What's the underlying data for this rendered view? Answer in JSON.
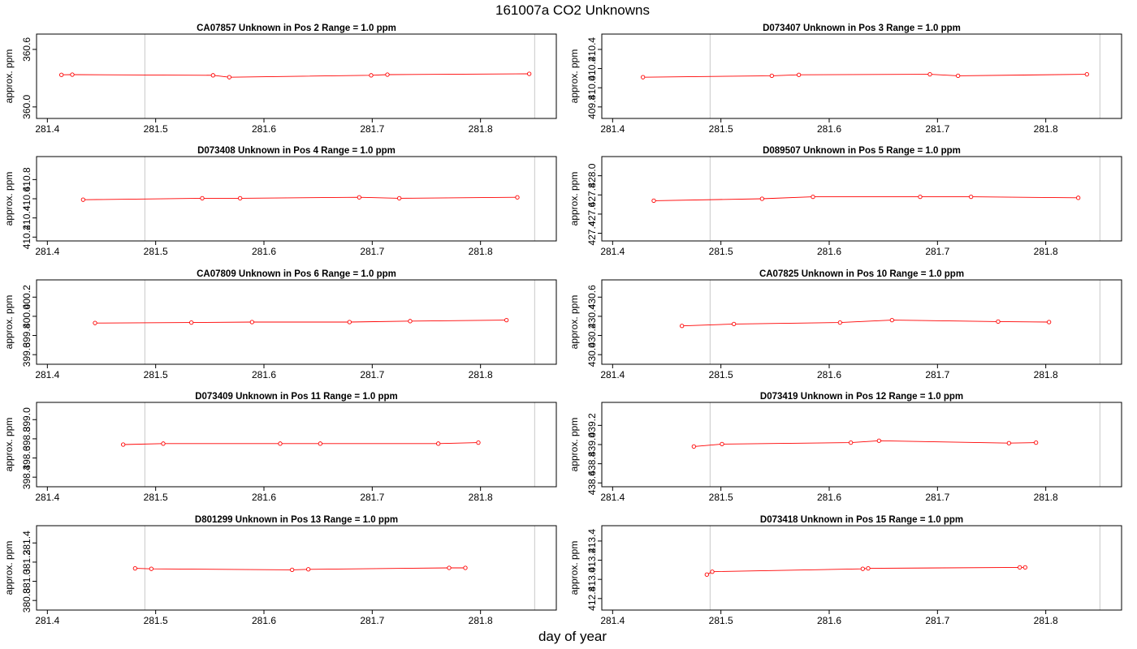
{
  "figure": {
    "title": "161007a  CO2 Unknowns",
    "xlabel": "day of year"
  },
  "colors": {
    "series": "#ff0000",
    "marker": "#ff0000",
    "vline": "#c8c8c8",
    "frame": "#000000"
  },
  "chart_data": [
    {
      "type": "line",
      "title": "CA07857    Unknown in Pos 2         Range = 1.0 ppm",
      "ylabel": "approx. ppm",
      "xlim": [
        281.39,
        281.87
      ],
      "ylim": [
        359.88,
        360.76
      ],
      "xticks": [
        "281.4",
        "281.5",
        "281.6",
        "281.7",
        "281.8"
      ],
      "yticks": [
        "360.0",
        "360.6"
      ],
      "vlines": [
        281.49,
        281.85
      ],
      "x": [
        281.413,
        281.423,
        281.553,
        281.568,
        281.699,
        281.714,
        281.845
      ],
      "y": [
        360.335,
        360.337,
        360.33,
        360.31,
        360.33,
        360.337,
        360.345
      ]
    },
    {
      "type": "line",
      "title": "D073407    Unknown in Pos 3         Range = 1.0 ppm",
      "ylabel": "approx. ppm",
      "xlim": [
        281.39,
        281.87
      ],
      "ylim": [
        409.68,
        410.56
      ],
      "xticks": [
        "281.4",
        "281.5",
        "281.6",
        "281.7",
        "281.8"
      ],
      "yticks": [
        "409.8",
        "410.0",
        "410.2",
        "410.4"
      ],
      "vlines": [
        281.49,
        281.85
      ],
      "x": [
        281.428,
        281.547,
        281.572,
        281.693,
        281.719,
        281.838
      ],
      "y": [
        410.11,
        410.125,
        410.135,
        410.14,
        410.125,
        410.14
      ]
    },
    {
      "type": "line",
      "title": "D073408    Unknown in Pos 4         Range = 1.0 ppm",
      "ylabel": "approx. ppm",
      "xlim": [
        281.39,
        281.87
      ],
      "ylim": [
        410.16,
        411.04
      ],
      "xticks": [
        "281.4",
        "281.5",
        "281.6",
        "281.7",
        "281.8"
      ],
      "yticks": [
        "410.2",
        "410.4",
        "410.6",
        "410.8"
      ],
      "vlines": [
        281.49,
        281.85
      ],
      "x": [
        281.433,
        281.543,
        281.578,
        281.688,
        281.725,
        281.834
      ],
      "y": [
        410.59,
        410.605,
        410.605,
        410.615,
        410.605,
        410.615
      ]
    },
    {
      "type": "line",
      "title": "D089507    Unknown in Pos 5         Range = 1.0 ppm",
      "ylabel": "approx. ppm",
      "xlim": [
        281.39,
        281.87
      ],
      "ylim": [
        427.32,
        428.2
      ],
      "xticks": [
        "281.4",
        "281.5",
        "281.6",
        "281.7",
        "281.8"
      ],
      "yticks": [
        "427.4",
        "427.6",
        "427.8",
        "428.0"
      ],
      "vlines": [
        281.49,
        281.85
      ],
      "x": [
        281.438,
        281.538,
        281.585,
        281.684,
        281.731,
        281.83
      ],
      "y": [
        427.74,
        427.76,
        427.78,
        427.78,
        427.78,
        427.77
      ]
    },
    {
      "type": "line",
      "title": "CA07809    Unknown in Pos 6         Range = 1.0 ppm",
      "ylabel": "approx. ppm",
      "xlim": [
        281.39,
        281.87
      ],
      "ylim": [
        399.5,
        400.38
      ],
      "xticks": [
        "281.4",
        "281.5",
        "281.6",
        "281.7",
        "281.8"
      ],
      "yticks": [
        "399.6",
        "399.8",
        "400.0",
        "400.2"
      ],
      "vlines": [
        281.49,
        281.85
      ],
      "x": [
        281.444,
        281.533,
        281.589,
        281.679,
        281.735,
        281.824
      ],
      "y": [
        399.93,
        399.935,
        399.94,
        399.94,
        399.95,
        399.96
      ]
    },
    {
      "type": "line",
      "title": "CA07825    Unknown in Pos 10         Range = 1.0 ppm",
      "ylabel": "approx. ppm",
      "xlim": [
        281.39,
        281.87
      ],
      "ylim": [
        429.9,
        430.78
      ],
      "xticks": [
        "281.4",
        "281.5",
        "281.6",
        "281.7",
        "281.8"
      ],
      "yticks": [
        "430.0",
        "430.2",
        "430.4",
        "430.6"
      ],
      "vlines": [
        281.49,
        281.85
      ],
      "x": [
        281.464,
        281.512,
        281.61,
        281.658,
        281.756,
        281.803
      ],
      "y": [
        430.3,
        430.32,
        430.335,
        430.36,
        430.345,
        430.34
      ]
    },
    {
      "type": "line",
      "title": "D073409    Unknown in Pos 11         Range = 1.0 ppm",
      "ylabel": "approx. ppm",
      "xlim": [
        281.39,
        281.87
      ],
      "ylim": [
        398.3,
        399.18
      ],
      "xticks": [
        "281.4",
        "281.5",
        "281.6",
        "281.7",
        "281.8"
      ],
      "yticks": [
        "398.4",
        "398.6",
        "398.8",
        "399.0"
      ],
      "vlines": [
        281.49,
        281.85
      ],
      "x": [
        281.47,
        281.507,
        281.615,
        281.652,
        281.761,
        281.798
      ],
      "y": [
        398.74,
        398.75,
        398.75,
        398.75,
        398.75,
        398.76
      ]
    },
    {
      "type": "line",
      "title": "D073419    Unknown in Pos 12         Range = 1.0 ppm",
      "ylabel": "approx. ppm",
      "xlim": [
        281.39,
        281.87
      ],
      "ylim": [
        438.56,
        439.44
      ],
      "xticks": [
        "281.4",
        "281.5",
        "281.6",
        "281.7",
        "281.8"
      ],
      "yticks": [
        "438.6",
        "438.8",
        "439.0",
        "439.2"
      ],
      "vlines": [
        281.49,
        281.85
      ],
      "x": [
        281.475,
        281.501,
        281.62,
        281.646,
        281.766,
        281.791
      ],
      "y": [
        438.98,
        439.005,
        439.02,
        439.04,
        439.015,
        439.02
      ]
    },
    {
      "type": "line",
      "title": "D801299    Unknown in Pos 13         Range = 1.0 ppm",
      "ylabel": "approx. ppm",
      "xlim": [
        281.39,
        281.87
      ],
      "ylim": [
        380.7,
        381.58
      ],
      "xticks": [
        "281.4",
        "281.5",
        "281.6",
        "281.7",
        "281.8"
      ],
      "yticks": [
        "380.8",
        "381.0",
        "381.2",
        "381.4"
      ],
      "vlines": [
        281.49,
        281.85
      ],
      "x": [
        281.481,
        281.496,
        281.626,
        281.641,
        281.771,
        281.786
      ],
      "y": [
        381.135,
        381.13,
        381.12,
        381.125,
        381.14,
        381.14
      ]
    },
    {
      "type": "line",
      "title": "D073418    Unknown in Pos 15         Range = 1.0 ppm",
      "ylabel": "approx. ppm",
      "xlim": [
        281.39,
        281.87
      ],
      "ylim": [
        412.68,
        413.56
      ],
      "xticks": [
        "281.4",
        "281.5",
        "281.6",
        "281.7",
        "281.8"
      ],
      "yticks": [
        "412.8",
        "413.0",
        "413.2",
        "413.4"
      ],
      "vlines": [
        281.49,
        281.85
      ],
      "x": [
        281.487,
        281.492,
        281.631,
        281.636,
        281.776,
        281.781
      ],
      "y": [
        413.05,
        413.08,
        413.11,
        413.115,
        413.125,
        413.125
      ]
    }
  ]
}
